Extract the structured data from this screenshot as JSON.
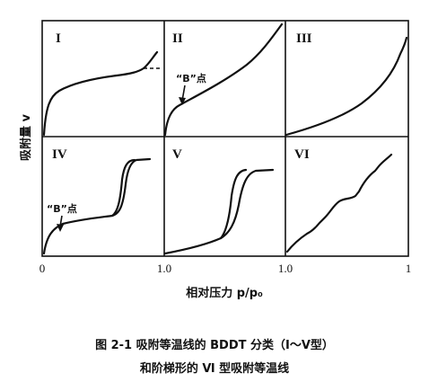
{
  "chart_data": {
    "type": "line",
    "panels": [
      {
        "label": "I"
      },
      {
        "label": "II",
        "annotation": "“B”点"
      },
      {
        "label": "III"
      },
      {
        "label": "IV",
        "annotation": "“B”点"
      },
      {
        "label": "V"
      },
      {
        "label": "VI"
      }
    ],
    "x_tick_labels": [
      "0",
      "1.0",
      "1.0",
      "1"
    ],
    "xlabel": "相对压力 p/p₀",
    "ylabel": "吸附量 v"
  },
  "caption": {
    "line1": "图 2-1   吸附等温线的 BDDT 分类（Ⅰ～Ⅴ型）",
    "line2": "和阶梯形的 Ⅵ 型吸附等温线"
  }
}
